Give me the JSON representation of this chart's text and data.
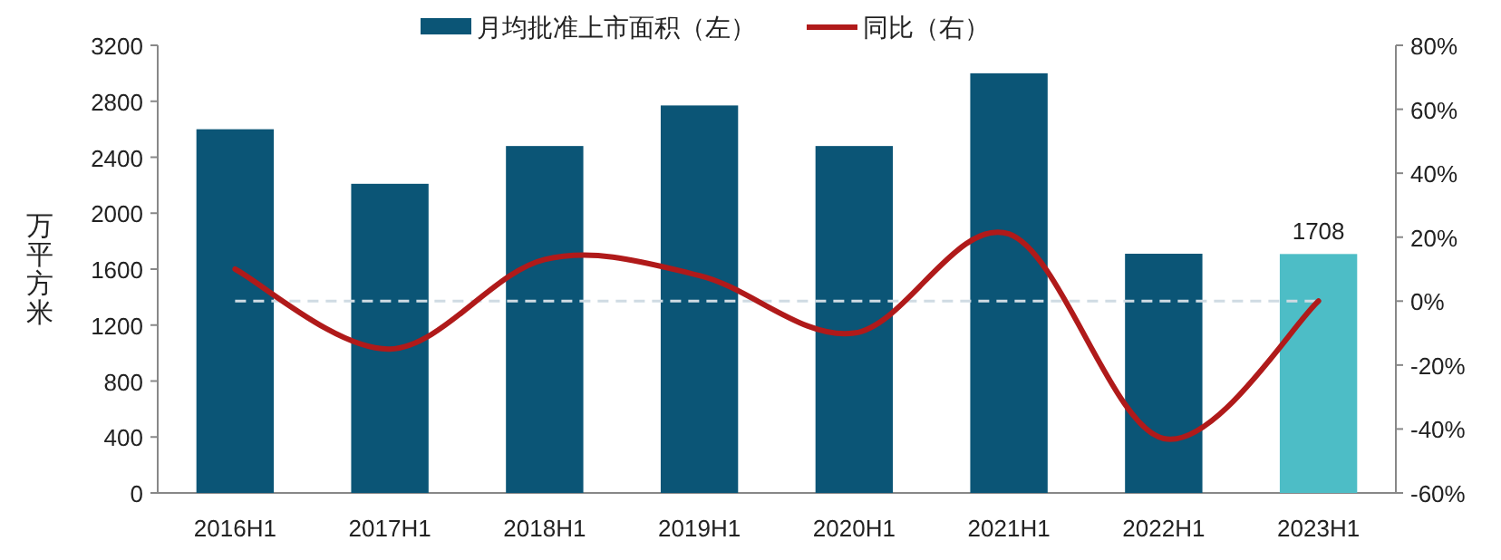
{
  "chart_data": {
    "type": "bar",
    "ylabel": "万平方米",
    "categories": [
      "2016H1",
      "2017H1",
      "2018H1",
      "2019H1",
      "2020H1",
      "2021H1",
      "2022H1",
      "2023H1"
    ],
    "series": [
      {
        "name": "月均批准上市面积（左）",
        "colors": [
          "#0b5576",
          "#0b5576",
          "#0b5576",
          "#0b5576",
          "#0b5576",
          "#0b5576",
          "#0b5576",
          "#4dbdc6"
        ],
        "values": [
          2600,
          2210,
          2480,
          2770,
          2480,
          3000,
          1710,
          1708
        ],
        "value_labels": [
          null,
          null,
          null,
          null,
          null,
          null,
          null,
          "1708"
        ]
      },
      {
        "name": "同比（右）",
        "type": "line",
        "axis": "y2",
        "color": "#b01a1a",
        "values": [
          10,
          -15,
          13,
          8,
          -10,
          21,
          -43,
          0
        ]
      }
    ],
    "ylim": [
      0,
      3200
    ],
    "yticks": [
      0,
      400,
      800,
      1200,
      1600,
      2000,
      2400,
      2800,
      3200
    ],
    "y2lim": [
      -60,
      80
    ],
    "y2ticks": [
      {
        "value": -60,
        "label": "-60%"
      },
      {
        "value": -40,
        "label": "-40%"
      },
      {
        "value": -20,
        "label": "-20%"
      },
      {
        "value": 0,
        "label": "0%"
      },
      {
        "value": 20,
        "label": "20%"
      },
      {
        "value": 40,
        "label": "40%"
      },
      {
        "value": 60,
        "label": "60%"
      },
      {
        "value": 80,
        "label": "80%"
      }
    ],
    "ref_lines": [
      {
        "axis": "y2",
        "value": 0,
        "color": "#d0dbe3",
        "line_style": "dashed"
      }
    ],
    "legend": "top"
  }
}
